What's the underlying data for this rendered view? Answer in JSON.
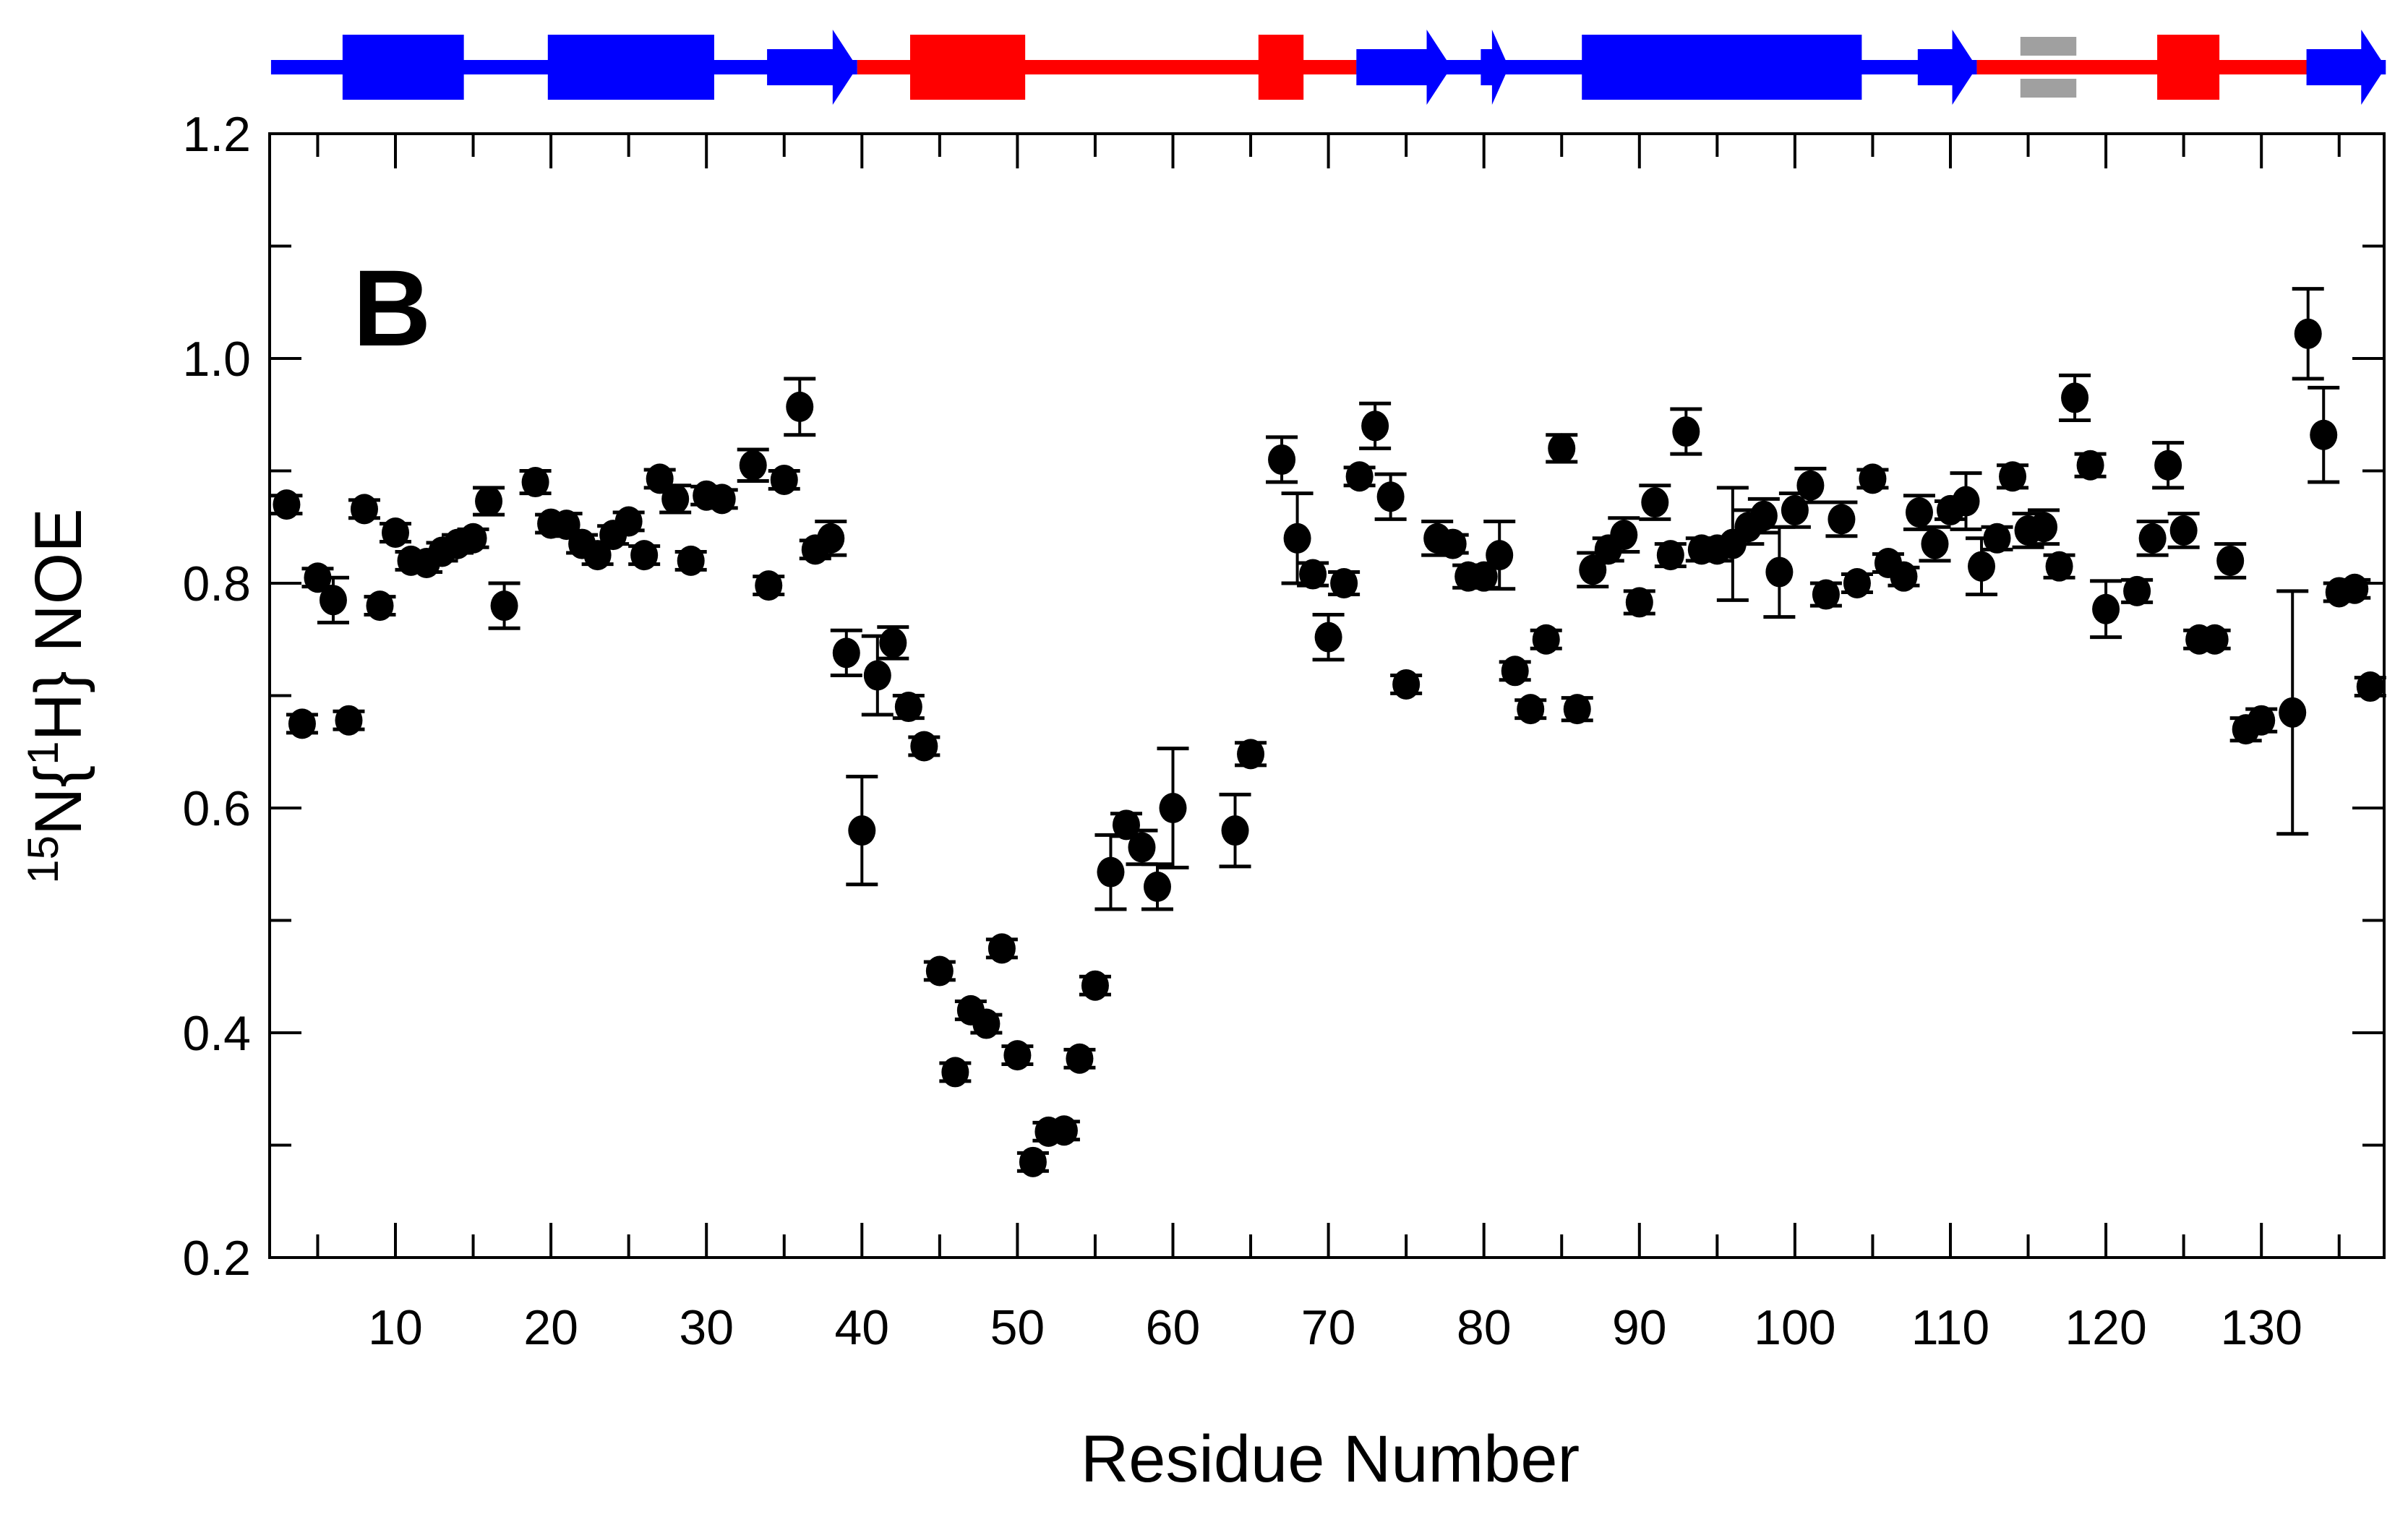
{
  "chart_data": {
    "type": "scatter",
    "title": "",
    "panel_label": "B",
    "xlabel": "Residue Number",
    "ylabel": "15N{1H} NOE",
    "ylabel_parts": {
      "sup1": "15",
      "n": "N{",
      "sup2": "1",
      "rest": "H} NOE"
    },
    "xlim": [
      2,
      138
    ],
    "ylim": [
      0.2,
      1.2
    ],
    "x_ticks": [
      10,
      20,
      30,
      40,
      50,
      60,
      70,
      80,
      90,
      100,
      110,
      120,
      130
    ],
    "y_ticks": [
      "0.2",
      "0.4",
      "0.6",
      "0.8",
      "1.0",
      "1.2"
    ],
    "y_tick_values": [
      0.2,
      0.4,
      0.6,
      0.8,
      1.0,
      1.2
    ],
    "grid": false,
    "legend": null,
    "marker_color": "#000000",
    "series": [
      {
        "name": "NOE",
        "points": [
          [
            3,
            0.87,
            0.008
          ],
          [
            4,
            0.675,
            0.008
          ],
          [
            5,
            0.805,
            0.008
          ],
          [
            6,
            0.785,
            0.02
          ],
          [
            7,
            0.678,
            0.008
          ],
          [
            8,
            0.866,
            0.008
          ],
          [
            9,
            0.78,
            0.008
          ],
          [
            10,
            0.845,
            0.008
          ],
          [
            11,
            0.82,
            0.008
          ],
          [
            12,
            0.818,
            0.008
          ],
          [
            13,
            0.828,
            0.008
          ],
          [
            14,
            0.835,
            0.008
          ],
          [
            15,
            0.84,
            0.008
          ],
          [
            16,
            0.873,
            0.012
          ],
          [
            17,
            0.78,
            0.02
          ],
          [
            19,
            0.89,
            0.01
          ],
          [
            20,
            0.853,
            0.008
          ],
          [
            21,
            0.852,
            0.01
          ],
          [
            22,
            0.835,
            0.008
          ],
          [
            23,
            0.825,
            0.008
          ],
          [
            24,
            0.843,
            0.008
          ],
          [
            25,
            0.855,
            0.008
          ],
          [
            26,
            0.825,
            0.008
          ],
          [
            27,
            0.893,
            0.008
          ],
          [
            28,
            0.875,
            0.012
          ],
          [
            29,
            0.82,
            0.008
          ],
          [
            30,
            0.878,
            0.008
          ],
          [
            31,
            0.875,
            0.008
          ],
          [
            33,
            0.905,
            0.014
          ],
          [
            34,
            0.798,
            0.008
          ],
          [
            35,
            0.892,
            0.008
          ],
          [
            36,
            0.957,
            0.025
          ],
          [
            37,
            0.83,
            0.008
          ],
          [
            38,
            0.84,
            0.015
          ],
          [
            39,
            0.738,
            0.02
          ],
          [
            40,
            0.58,
            0.048
          ],
          [
            41,
            0.718,
            0.035
          ],
          [
            42,
            0.747,
            0.014
          ],
          [
            43,
            0.69,
            0.01
          ],
          [
            44,
            0.655,
            0.008
          ],
          [
            45,
            0.455,
            0.008
          ],
          [
            46,
            0.365,
            0.008
          ],
          [
            47,
            0.42,
            0.008
          ],
          [
            48,
            0.408,
            0.008
          ],
          [
            49,
            0.475,
            0.008
          ],
          [
            50,
            0.38,
            0.008
          ],
          [
            51,
            0.285,
            0.008
          ],
          [
            52,
            0.312,
            0.008
          ],
          [
            53,
            0.313,
            0.008
          ],
          [
            54,
            0.377,
            0.008
          ],
          [
            55,
            0.442,
            0.008
          ],
          [
            56,
            0.543,
            0.033
          ],
          [
            57,
            0.585,
            0.01
          ],
          [
            58,
            0.565,
            0.015
          ],
          [
            59,
            0.53,
            0.02
          ],
          [
            60,
            0.6,
            0.053
          ],
          [
            64,
            0.58,
            0.032
          ],
          [
            65,
            0.648,
            0.01
          ],
          [
            67,
            0.91,
            0.02
          ],
          [
            68,
            0.84,
            0.04
          ],
          [
            69,
            0.808,
            0.01
          ],
          [
            70,
            0.752,
            0.02
          ],
          [
            71,
            0.8,
            0.01
          ],
          [
            72,
            0.895,
            0.008
          ],
          [
            73,
            0.94,
            0.02
          ],
          [
            74,
            0.877,
            0.02
          ],
          [
            75,
            0.71,
            0.008
          ],
          [
            77,
            0.84,
            0.015
          ],
          [
            78,
            0.835,
            0.008
          ],
          [
            79,
            0.806,
            0.01
          ],
          [
            80,
            0.806,
            0.01
          ],
          [
            81,
            0.825,
            0.03
          ],
          [
            82,
            0.722,
            0.008
          ],
          [
            83,
            0.688,
            0.008
          ],
          [
            84,
            0.75,
            0.008
          ],
          [
            85,
            0.92,
            0.012
          ],
          [
            86,
            0.688,
            0.01
          ],
          [
            87,
            0.812,
            0.015
          ],
          [
            88,
            0.83,
            0.01
          ],
          [
            89,
            0.843,
            0.015
          ],
          [
            90,
            0.783,
            0.01
          ],
          [
            91,
            0.872,
            0.015
          ],
          [
            92,
            0.825,
            0.01
          ],
          [
            93,
            0.935,
            0.02
          ],
          [
            94,
            0.83,
            0.01
          ],
          [
            95,
            0.83,
            0.01
          ],
          [
            96,
            0.835,
            0.05
          ],
          [
            97,
            0.85,
            0.015
          ],
          [
            98,
            0.86,
            0.015
          ],
          [
            99,
            0.81,
            0.04
          ],
          [
            100,
            0.865,
            0.015
          ],
          [
            101,
            0.887,
            0.015
          ],
          [
            102,
            0.79,
            0.01
          ],
          [
            103,
            0.857,
            0.015
          ],
          [
            104,
            0.8,
            0.008
          ],
          [
            105,
            0.893,
            0.008
          ],
          [
            106,
            0.818,
            0.008
          ],
          [
            107,
            0.806,
            0.008
          ],
          [
            108,
            0.863,
            0.015
          ],
          [
            109,
            0.835,
            0.015
          ],
          [
            110,
            0.865,
            0.008
          ],
          [
            111,
            0.873,
            0.025
          ],
          [
            112,
            0.815,
            0.025
          ],
          [
            113,
            0.84,
            0.01
          ],
          [
            114,
            0.895,
            0.01
          ],
          [
            115,
            0.847,
            0.015
          ],
          [
            116,
            0.85,
            0.015
          ],
          [
            117,
            0.815,
            0.01
          ],
          [
            118,
            0.965,
            0.02
          ],
          [
            119,
            0.905,
            0.01
          ],
          [
            120,
            0.777,
            0.025
          ],
          [
            122,
            0.793,
            0.01
          ],
          [
            123,
            0.84,
            0.015
          ],
          [
            124,
            0.905,
            0.02
          ],
          [
            125,
            0.847,
            0.015
          ],
          [
            126,
            0.75,
            0.008
          ],
          [
            127,
            0.75,
            0.008
          ],
          [
            128,
            0.82,
            0.015
          ],
          [
            129,
            0.67,
            0.01
          ],
          [
            130,
            0.678,
            0.01
          ],
          [
            132,
            0.685,
            0.108
          ],
          [
            133,
            1.022,
            0.04
          ],
          [
            134,
            0.932,
            0.042
          ],
          [
            135,
            0.792,
            0.008
          ],
          [
            136,
            0.795,
            0.008
          ],
          [
            137,
            0.708,
            0.008
          ]
        ]
      }
    ],
    "secondary_structure": {
      "colors": {
        "blue": "#0000ff",
        "red": "#ff0000",
        "gray": "#a0a0a0"
      },
      "line_segments": [
        {
          "start": 2,
          "end": 39.7,
          "color": "blue"
        },
        {
          "start": 39.7,
          "end": 71.8,
          "color": "red"
        },
        {
          "start": 71.8,
          "end": 111.7,
          "color": "blue"
        },
        {
          "start": 111.7,
          "end": 133,
          "color": "red"
        },
        {
          "start": 133,
          "end": 138,
          "color": "blue"
        }
      ],
      "elements": [
        {
          "type": "helix",
          "start": 6.6,
          "end": 14.4,
          "color": "blue"
        },
        {
          "type": "helix",
          "start": 19.8,
          "end": 30.5,
          "color": "blue"
        },
        {
          "type": "strand",
          "start": 33.9,
          "end": 39.7,
          "color": "blue"
        },
        {
          "type": "helix",
          "start": 43.1,
          "end": 50.5,
          "color": "red"
        },
        {
          "type": "helix",
          "start": 65.5,
          "end": 68.4,
          "color": "red"
        },
        {
          "type": "strand",
          "start": 71.8,
          "end": 77.9,
          "color": "blue"
        },
        {
          "type": "strand",
          "start": 79.8,
          "end": 81.6,
          "color": "blue"
        },
        {
          "type": "helix",
          "start": 86.3,
          "end": 104.3,
          "color": "blue"
        },
        {
          "type": "strand",
          "start": 107.9,
          "end": 111.7,
          "color": "blue"
        },
        {
          "type": "bar",
          "start": 114.5,
          "end": 118.1,
          "color": "gray"
        },
        {
          "type": "helix",
          "start": 123.3,
          "end": 127.3,
          "color": "red"
        },
        {
          "type": "strand",
          "start": 132.9,
          "end": 138,
          "color": "blue"
        }
      ]
    }
  }
}
